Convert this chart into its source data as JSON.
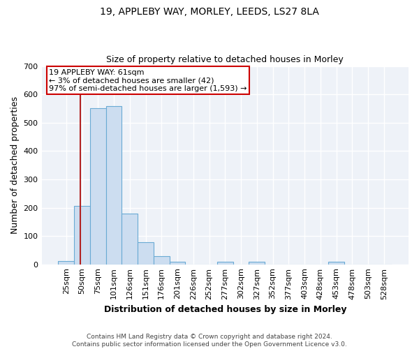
{
  "title": "19, APPLEBY WAY, MORLEY, LEEDS, LS27 8LA",
  "subtitle": "Size of property relative to detached houses in Morley",
  "xlabel": "Distribution of detached houses by size in Morley",
  "ylabel": "Number of detached properties",
  "bar_labels": [
    "25sqm",
    "50sqm",
    "75sqm",
    "101sqm",
    "126sqm",
    "151sqm",
    "176sqm",
    "201sqm",
    "226sqm",
    "252sqm",
    "277sqm",
    "302sqm",
    "327sqm",
    "352sqm",
    "377sqm",
    "403sqm",
    "428sqm",
    "453sqm",
    "478sqm",
    "503sqm",
    "528sqm"
  ],
  "bar_heights": [
    12,
    205,
    552,
    558,
    178,
    78,
    30,
    10,
    0,
    0,
    8,
    0,
    8,
    0,
    0,
    0,
    0,
    8,
    0,
    0,
    0
  ],
  "bar_color": "#ccddf0",
  "bar_edge_color": "#6aaad4",
  "vline_x": 1.4,
  "vline_color": "#b22222",
  "annotation_text": "19 APPLEBY WAY: 61sqm\n← 3% of detached houses are smaller (42)\n97% of semi-detached houses are larger (1,593) →",
  "annotation_box_color": "#ffffff",
  "annotation_box_edge": "#cc0000",
  "ylim": [
    0,
    700
  ],
  "yticks": [
    0,
    100,
    200,
    300,
    400,
    500,
    600,
    700
  ],
  "plot_bg_color": "#eef2f8",
  "fig_bg_color": "#ffffff",
  "grid_color": "#ffffff",
  "footer": "Contains HM Land Registry data © Crown copyright and database right 2024.\nContains public sector information licensed under the Open Government Licence v3.0."
}
